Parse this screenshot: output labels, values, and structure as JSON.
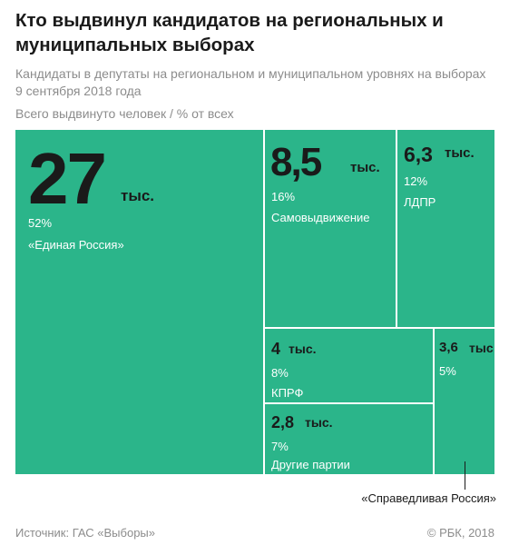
{
  "header": {
    "title": "Кто выдвинул кандидатов на региональных и муниципальных выборах",
    "subtitle": "Кандидаты в депутаты на региональном и муниципальном уровнях на выборах 9 сентября 2018 года",
    "unit_note": "Всего выдвинуто человек / % от всех"
  },
  "chart_data": {
    "type": "treemap",
    "title": "Кто выдвинул кандидатов на региональных и муниципальных выборах",
    "subtitle": "Кандидаты в депутаты на региональном и муниципальном уровнях на выборах 9 сентября 2018 года",
    "unit_note": "Всего выдвинуто человек / % от всех",
    "items": [
      {
        "name": "«Единая Россия»",
        "value": 27,
        "value_label": "27",
        "unit": "тыс.",
        "percent": 52,
        "percent_label": "52%"
      },
      {
        "name": "Самовыдвижение",
        "value": 8.5,
        "value_label": "8,5",
        "unit": "тыс.",
        "percent": 16,
        "percent_label": "16%"
      },
      {
        "name": "ЛДПР",
        "value": 6.3,
        "value_label": "6,3",
        "unit": "тыс.",
        "percent": 12,
        "percent_label": "12%"
      },
      {
        "name": "КПРФ",
        "value": 4,
        "value_label": "4",
        "unit": "тыс.",
        "percent": 8,
        "percent_label": "8%"
      },
      {
        "name": "Другие партии",
        "value": 2.8,
        "value_label": "2,8",
        "unit": "тыс.",
        "percent": 7,
        "percent_label": "7%"
      },
      {
        "name": "«Справедливая Россия»",
        "value": 3.6,
        "value_label": "3,6",
        "unit": "тыс",
        "percent": 5,
        "percent_label": "5%"
      }
    ],
    "fill_color": "#2bb58a",
    "callout": "«Справедливая Россия»"
  },
  "footer": {
    "source": "Источник: ГАС «Выборы»",
    "copyright": "© РБК, 2018"
  }
}
